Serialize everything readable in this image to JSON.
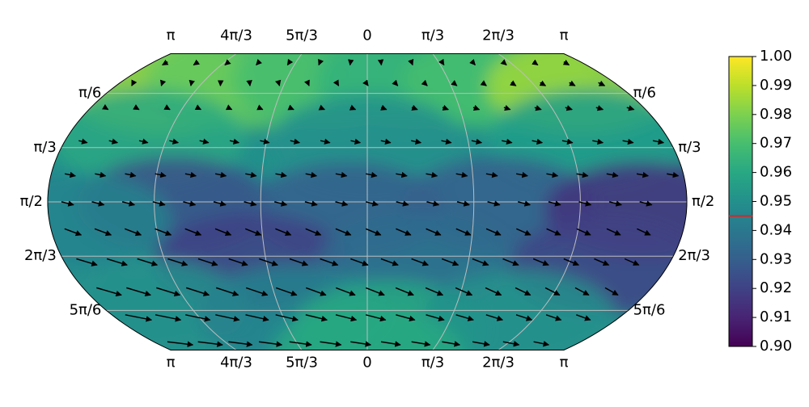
{
  "chart_data": {
    "type": "heatmap",
    "title": "",
    "projection": "kavrayskiy-vii",
    "grid": true,
    "colormap": "viridis",
    "colorbar": {
      "min": 0.9,
      "max": 1.0,
      "ticks": [
        "1.00",
        "0.99",
        "0.98",
        "0.97",
        "0.96",
        "0.95",
        "0.94",
        "0.93",
        "0.92",
        "0.91",
        "0.90"
      ],
      "marker_value": 0.945,
      "marker_color": "#d62728",
      "placement": "right"
    },
    "top_tick_labels": [
      "π",
      "4π/3",
      "5π/3",
      "0",
      "π/3",
      "2π/3",
      "π"
    ],
    "bottom_tick_labels": [
      "π",
      "4π/3",
      "5π/3",
      "0",
      "π/3",
      "2π/3",
      "π"
    ],
    "left_tick_labels": [
      "π/6",
      "π/3",
      "π/2",
      "2π/3",
      "5π/6"
    ],
    "right_tick_labels": [
      "π/6",
      "π/3",
      "π/2",
      "2π/3",
      "5π/6"
    ],
    "field_points": [
      {
        "lon": -2.6,
        "colat": 0.45,
        "value": 0.985
      },
      {
        "lon": -1.6,
        "colat": 0.4,
        "value": 0.975
      },
      {
        "lon": -0.5,
        "colat": 0.4,
        "value": 0.97
      },
      {
        "lon": 0.6,
        "colat": 0.4,
        "value": 0.965
      },
      {
        "lon": 1.7,
        "colat": 0.4,
        "value": 0.97
      },
      {
        "lon": 2.7,
        "colat": 0.45,
        "value": 0.985
      },
      {
        "lon": -2.3,
        "colat": 0.95,
        "value": 0.96
      },
      {
        "lon": 0.0,
        "colat": 1.0,
        "value": 0.95
      },
      {
        "lon": 2.3,
        "colat": 0.95,
        "value": 0.955
      },
      {
        "lon": -1.9,
        "colat": 1.6,
        "value": 0.925
      },
      {
        "lon": -0.2,
        "colat": 1.65,
        "value": 0.93
      },
      {
        "lon": 1.3,
        "colat": 1.6,
        "value": 0.93
      },
      {
        "lon": 2.7,
        "colat": 1.65,
        "value": 0.915
      },
      {
        "lon": -2.9,
        "colat": 1.75,
        "value": 0.945
      },
      {
        "lon": -1.2,
        "colat": 2.15,
        "value": 0.92
      },
      {
        "lon": 0.5,
        "colat": 2.15,
        "value": 0.935
      },
      {
        "lon": 2.5,
        "colat": 2.2,
        "value": 0.92
      },
      {
        "lon": -2.6,
        "colat": 2.6,
        "value": 0.95
      },
      {
        "lon": -0.9,
        "colat": 2.65,
        "value": 0.945
      },
      {
        "lon": 0.3,
        "colat": 2.8,
        "value": 0.96
      },
      {
        "lon": 1.9,
        "colat": 2.7,
        "value": 0.95
      },
      {
        "lon": 0.0,
        "colat": 3.05,
        "value": 0.96
      }
    ],
    "vector_field": {
      "rows": [
        {
          "colat": 0.22,
          "dlon": 0.0,
          "dcolat": 0.03
        },
        {
          "colat": 0.42,
          "dlon": 0.03,
          "dcolat": 0.03
        },
        {
          "colat": 0.66,
          "dlon": 0.06,
          "dcolat": 0.02
        },
        {
          "colat": 0.98,
          "dlon": 0.1,
          "dcolat": 0.02
        },
        {
          "colat": 1.3,
          "dlon": 0.11,
          "dcolat": 0.02
        },
        {
          "colat": 1.57,
          "dlon": 0.12,
          "dcolat": 0.03
        },
        {
          "colat": 1.83,
          "dlon": 0.15,
          "dcolat": 0.06
        },
        {
          "colat": 2.12,
          "dlon": 0.18,
          "dcolat": 0.06
        },
        {
          "colat": 2.4,
          "dlon": 0.21,
          "dcolat": 0.07
        },
        {
          "colat": 2.66,
          "dlon": 0.25,
          "dcolat": 0.05
        },
        {
          "colat": 2.92,
          "dlon": 0.3,
          "dcolat": 0.03
        },
        {
          "colat": 3.07,
          "dlon": 0.35,
          "dcolat": 0.01
        }
      ]
    }
  }
}
